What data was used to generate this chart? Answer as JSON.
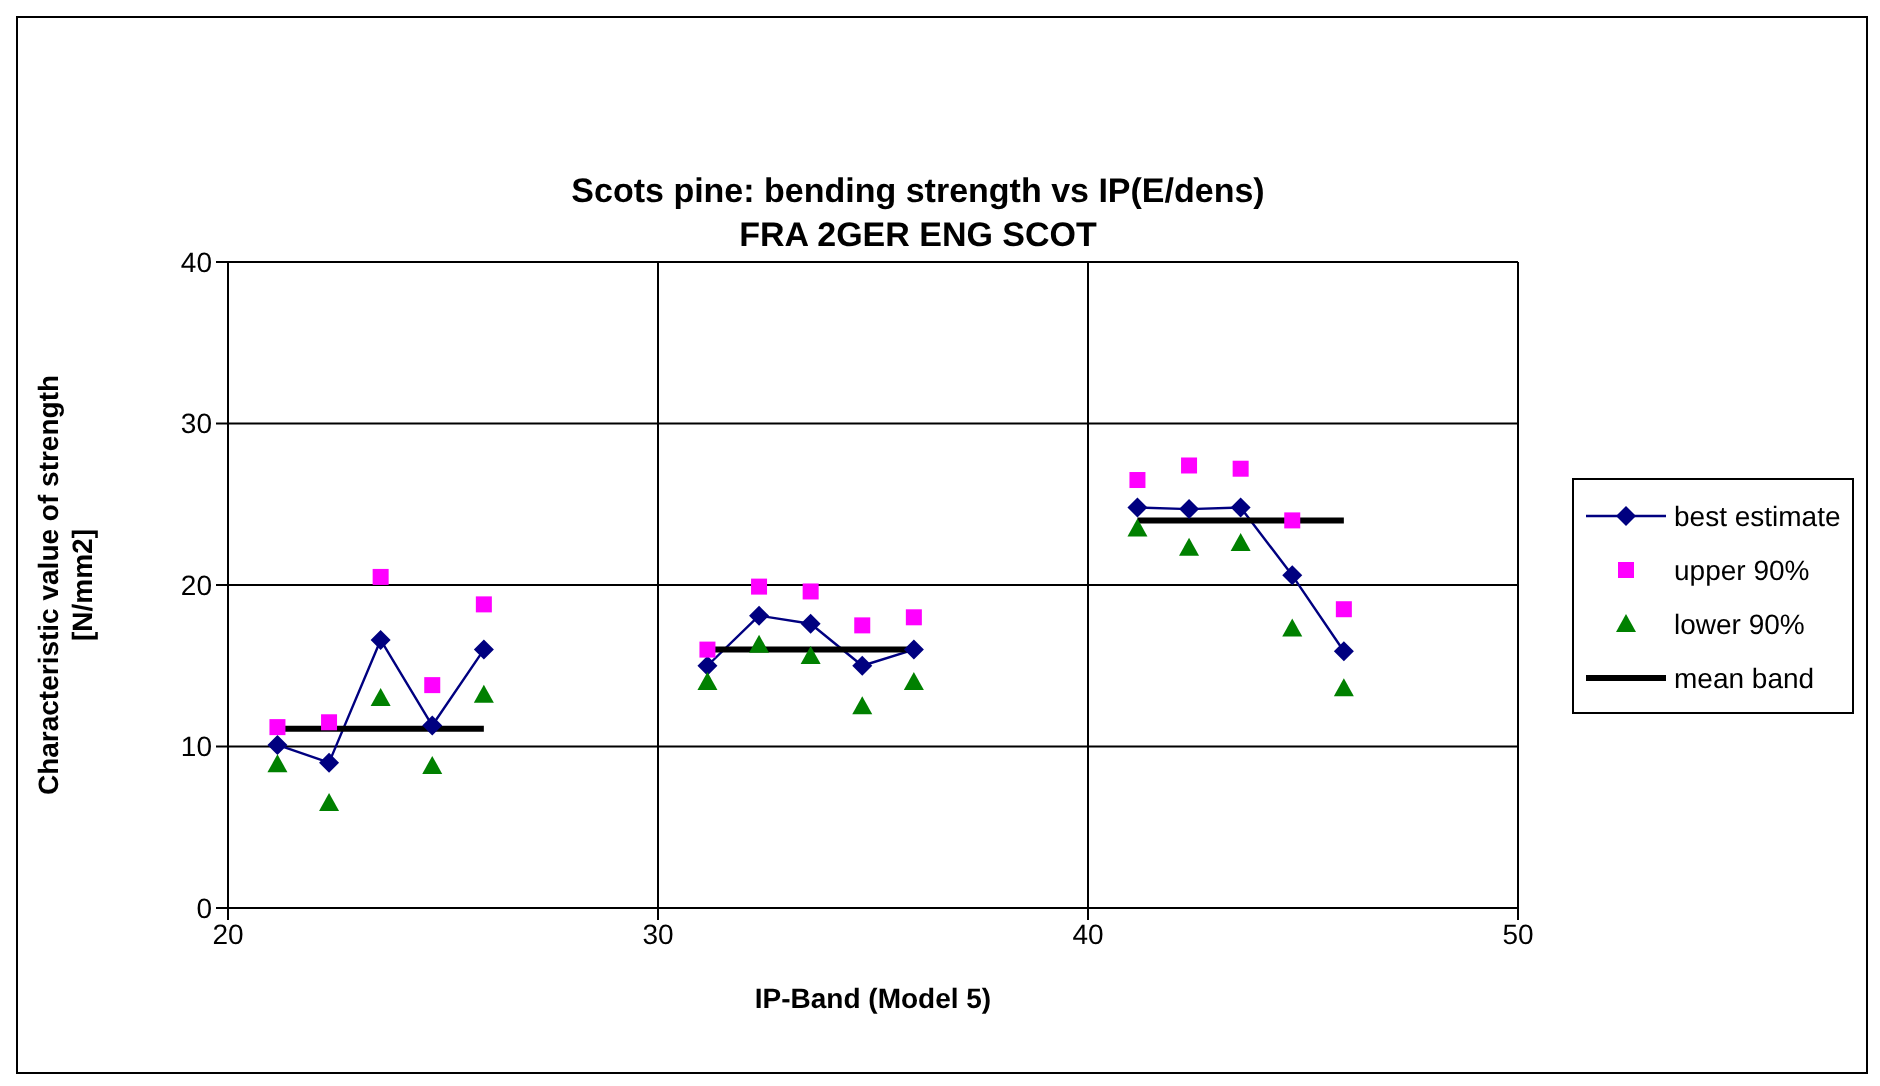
{
  "chart_data": {
    "type": "line",
    "title": "Scots pine: bending strength vs IP(E/dens)",
    "subtitle": "FRA 2GER ENG SCOT",
    "xlabel": "IP-Band (Model 5)",
    "ylabel": "Characteristic value of strength [N/mm2]",
    "xlim": [
      20,
      50
    ],
    "xticks": [
      20,
      30,
      40,
      50
    ],
    "ylim": [
      0,
      40
    ],
    "yticks": [
      0,
      10,
      20,
      30,
      40
    ],
    "grid": true,
    "legend": "right",
    "series": [
      {
        "name": "best estimate",
        "color": "#000080",
        "marker": "diamond",
        "x": [
          21.15,
          22.35,
          23.55,
          24.75,
          25.95
        ],
        "values": [
          10.1,
          9.0,
          16.6,
          11.3,
          16.0
        ]
      },
      {
        "color": "#000080",
        "marker": "diamond",
        "x": [
          31.15,
          32.35,
          33.55,
          34.75,
          35.95
        ],
        "values": [
          15.0,
          18.1,
          17.6,
          15.0,
          16.0
        ]
      },
      {
        "color": "#000080",
        "marker": "diamond",
        "x": [
          41.15,
          42.35,
          43.55,
          44.75,
          45.95
        ],
        "values": [
          24.8,
          24.7,
          24.8,
          20.6,
          15.9
        ]
      },
      {
        "name": "upper 90%",
        "type": "scatter",
        "color": "#ff00ff",
        "marker": "square",
        "x": [
          21.15,
          22.35,
          23.55,
          24.75,
          25.95,
          31.15,
          32.35,
          33.55,
          34.75,
          35.95,
          41.15,
          42.35,
          43.55,
          44.75,
          45.95
        ],
        "values": [
          11.2,
          11.5,
          20.5,
          13.8,
          18.8,
          16.0,
          19.9,
          19.6,
          17.5,
          18.0,
          26.5,
          27.4,
          27.2,
          24.0,
          18.5
        ]
      },
      {
        "name": "lower 90%",
        "type": "scatter",
        "color": "#008000",
        "marker": "triangle",
        "x": [
          21.15,
          22.35,
          23.55,
          24.75,
          25.95,
          31.15,
          32.35,
          33.55,
          34.75,
          35.95,
          41.15,
          42.35,
          43.55,
          44.75,
          45.95
        ],
        "values": [
          8.9,
          6.5,
          13.0,
          8.8,
          13.2,
          14.0,
          16.3,
          15.6,
          12.5,
          14.0,
          23.5,
          22.3,
          22.6,
          17.3,
          13.6
        ]
      },
      {
        "name": "mean band",
        "color": "#000000",
        "marker": "none",
        "x": [
          21.15,
          25.95
        ],
        "values": [
          11.1,
          11.1
        ]
      },
      {
        "color": "#000000",
        "marker": "none",
        "x": [
          31.15,
          35.95
        ],
        "values": [
          16.0,
          16.0
        ]
      },
      {
        "color": "#000000",
        "marker": "none",
        "x": [
          41.15,
          45.95
        ],
        "values": [
          24.0,
          24.0
        ]
      }
    ]
  }
}
